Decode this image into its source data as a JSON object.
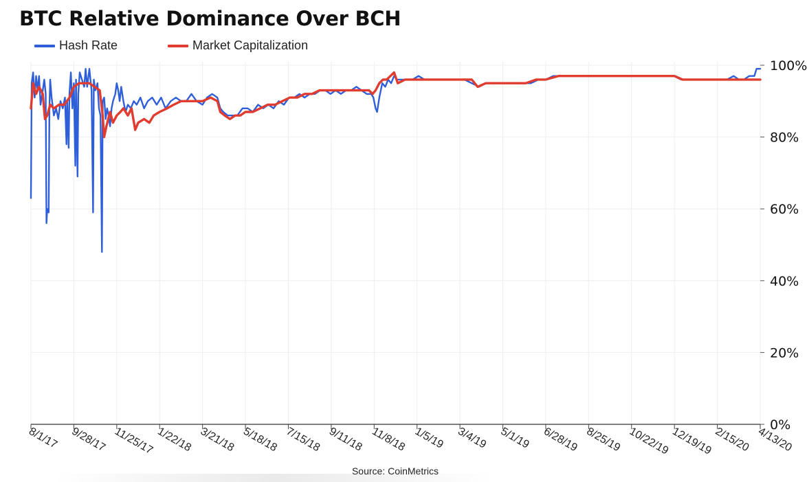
{
  "title": "BTC Relative Dominance Over BCH",
  "source": "Source: CoinMetrics",
  "chart_data": {
    "type": "line",
    "title": "BTC Relative Dominance Over BCH",
    "xlabel": "",
    "ylabel": "",
    "x_ticks": [
      "8/1/17",
      "9/28/17",
      "11/25/17",
      "1/22/18",
      "3/21/18",
      "5/18/18",
      "7/15/18",
      "9/11/18",
      "11/8/18",
      "1/5/19",
      "3/4/19",
      "5/1/19",
      "6/28/19",
      "8/25/19",
      "10/22/19",
      "12/19/19",
      "2/15/20",
      "4/13/20"
    ],
    "y_ticks": [
      "0%",
      "20%",
      "40%",
      "60%",
      "80%",
      "100%"
    ],
    "ylim": [
      0,
      100
    ],
    "x_start": "2017-08-01",
    "x_end": "2020-04-13",
    "grid": true,
    "legend_position": "top-left",
    "series": [
      {
        "name": "Hash Rate",
        "color": "#2f5fd8",
        "points": [
          [
            "2017-08-01",
            63
          ],
          [
            "2017-08-02",
            95
          ],
          [
            "2017-08-04",
            98
          ],
          [
            "2017-08-06",
            91
          ],
          [
            "2017-08-08",
            97
          ],
          [
            "2017-08-10",
            93
          ],
          [
            "2017-08-12",
            97
          ],
          [
            "2017-08-14",
            89
          ],
          [
            "2017-08-17",
            93
          ],
          [
            "2017-08-19",
            96
          ],
          [
            "2017-08-21",
            92
          ],
          [
            "2017-08-22",
            56
          ],
          [
            "2017-08-23",
            60
          ],
          [
            "2017-08-25",
            59
          ],
          [
            "2017-08-26",
            88
          ],
          [
            "2017-08-27",
            96
          ],
          [
            "2017-08-29",
            91
          ],
          [
            "2017-09-01",
            86
          ],
          [
            "2017-09-04",
            88
          ],
          [
            "2017-09-07",
            85
          ],
          [
            "2017-09-10",
            90
          ],
          [
            "2017-09-13",
            88
          ],
          [
            "2017-09-16",
            91
          ],
          [
            "2017-09-18",
            78
          ],
          [
            "2017-09-19",
            90
          ],
          [
            "2017-09-21",
            77
          ],
          [
            "2017-09-22",
            92
          ],
          [
            "2017-09-24",
            98
          ],
          [
            "2017-09-26",
            88
          ],
          [
            "2017-09-28",
            95
          ],
          [
            "2017-09-30",
            72
          ],
          [
            "2017-10-01",
            96
          ],
          [
            "2017-10-03",
            69
          ],
          [
            "2017-10-04",
            92
          ],
          [
            "2017-10-06",
            98
          ],
          [
            "2017-10-09",
            96
          ],
          [
            "2017-10-12",
            94
          ],
          [
            "2017-10-14",
            99
          ],
          [
            "2017-10-16",
            94
          ],
          [
            "2017-10-19",
            99
          ],
          [
            "2017-10-22",
            93
          ],
          [
            "2017-10-24",
            59
          ],
          [
            "2017-10-25",
            96
          ],
          [
            "2017-10-27",
            93
          ],
          [
            "2017-10-30",
            95
          ],
          [
            "2017-11-01",
            88
          ],
          [
            "2017-11-03",
            86
          ],
          [
            "2017-11-05",
            48
          ],
          [
            "2017-11-06",
            90
          ],
          [
            "2017-11-08",
            91
          ],
          [
            "2017-11-10",
            85
          ],
          [
            "2017-11-12",
            88
          ],
          [
            "2017-11-14",
            86
          ],
          [
            "2017-11-16",
            83
          ],
          [
            "2017-11-18",
            88
          ],
          [
            "2017-11-20",
            90
          ],
          [
            "2017-11-23",
            92
          ],
          [
            "2017-11-25",
            95
          ],
          [
            "2017-11-27",
            93
          ],
          [
            "2017-11-29",
            90
          ],
          [
            "2017-12-01",
            94
          ],
          [
            "2017-12-04",
            90
          ],
          [
            "2017-12-07",
            87
          ],
          [
            "2017-12-10",
            89
          ],
          [
            "2017-12-14",
            88
          ],
          [
            "2017-12-18",
            90
          ],
          [
            "2017-12-22",
            89
          ],
          [
            "2017-12-27",
            91
          ],
          [
            "2018-01-01",
            88
          ],
          [
            "2018-01-06",
            90
          ],
          [
            "2018-01-12",
            91
          ],
          [
            "2018-01-18",
            89
          ],
          [
            "2018-01-24",
            91
          ],
          [
            "2018-01-30",
            88
          ],
          [
            "2018-02-06",
            90
          ],
          [
            "2018-02-13",
            91
          ],
          [
            "2018-02-20",
            90
          ],
          [
            "2018-02-27",
            90
          ],
          [
            "2018-03-06",
            92
          ],
          [
            "2018-03-13",
            90
          ],
          [
            "2018-03-21",
            89
          ],
          [
            "2018-03-27",
            91
          ],
          [
            "2018-04-03",
            92
          ],
          [
            "2018-04-10",
            91
          ],
          [
            "2018-04-14",
            88
          ],
          [
            "2018-04-18",
            87
          ],
          [
            "2018-04-24",
            86
          ],
          [
            "2018-04-30",
            86
          ],
          [
            "2018-05-07",
            86
          ],
          [
            "2018-05-14",
            88
          ],
          [
            "2018-05-21",
            88
          ],
          [
            "2018-05-28",
            87
          ],
          [
            "2018-06-04",
            89
          ],
          [
            "2018-06-11",
            88
          ],
          [
            "2018-06-18",
            89
          ],
          [
            "2018-06-25",
            88
          ],
          [
            "2018-07-02",
            90
          ],
          [
            "2018-07-09",
            89
          ],
          [
            "2018-07-16",
            91
          ],
          [
            "2018-07-23",
            91
          ],
          [
            "2018-07-30",
            92
          ],
          [
            "2018-08-06",
            91
          ],
          [
            "2018-08-13",
            92
          ],
          [
            "2018-08-20",
            92
          ],
          [
            "2018-08-27",
            93
          ],
          [
            "2018-09-03",
            93
          ],
          [
            "2018-09-10",
            92
          ],
          [
            "2018-09-17",
            93
          ],
          [
            "2018-09-24",
            92
          ],
          [
            "2018-10-01",
            93
          ],
          [
            "2018-10-08",
            93
          ],
          [
            "2018-10-15",
            94
          ],
          [
            "2018-10-22",
            93
          ],
          [
            "2018-10-29",
            92
          ],
          [
            "2018-11-04",
            92
          ],
          [
            "2018-11-07",
            91
          ],
          [
            "2018-11-10",
            88
          ],
          [
            "2018-11-12",
            87
          ],
          [
            "2018-11-15",
            91
          ],
          [
            "2018-11-19",
            95
          ],
          [
            "2018-11-23",
            94
          ],
          [
            "2018-11-27",
            96
          ],
          [
            "2018-12-01",
            95
          ],
          [
            "2018-12-05",
            97
          ],
          [
            "2018-12-09",
            96
          ],
          [
            "2018-12-15",
            96
          ],
          [
            "2018-12-22",
            96
          ],
          [
            "2018-12-30",
            96
          ],
          [
            "2019-01-07",
            97
          ],
          [
            "2019-01-15",
            96
          ],
          [
            "2019-01-23",
            96
          ],
          [
            "2019-02-01",
            96
          ],
          [
            "2019-02-10",
            96
          ],
          [
            "2019-02-20",
            96
          ],
          [
            "2019-03-01",
            96
          ],
          [
            "2019-03-10",
            96
          ],
          [
            "2019-03-20",
            95
          ],
          [
            "2019-03-30",
            94
          ],
          [
            "2019-04-08",
            95
          ],
          [
            "2019-04-18",
            95
          ],
          [
            "2019-04-28",
            95
          ],
          [
            "2019-05-08",
            95
          ],
          [
            "2019-05-18",
            95
          ],
          [
            "2019-05-28",
            95
          ],
          [
            "2019-06-08",
            95
          ],
          [
            "2019-06-18",
            96
          ],
          [
            "2019-06-28",
            96
          ],
          [
            "2019-07-08",
            97
          ],
          [
            "2019-07-18",
            97
          ],
          [
            "2019-07-28",
            97
          ],
          [
            "2019-08-08",
            97
          ],
          [
            "2019-08-18",
            97
          ],
          [
            "2019-08-28",
            97
          ],
          [
            "2019-09-08",
            97
          ],
          [
            "2019-09-18",
            97
          ],
          [
            "2019-09-28",
            97
          ],
          [
            "2019-10-08",
            97
          ],
          [
            "2019-10-18",
            97
          ],
          [
            "2019-10-28",
            97
          ],
          [
            "2019-11-08",
            97
          ],
          [
            "2019-11-18",
            97
          ],
          [
            "2019-11-28",
            97
          ],
          [
            "2019-12-08",
            97
          ],
          [
            "2019-12-18",
            97
          ],
          [
            "2019-12-28",
            96
          ],
          [
            "2020-01-08",
            96
          ],
          [
            "2020-01-18",
            96
          ],
          [
            "2020-01-28",
            96
          ],
          [
            "2020-02-08",
            96
          ],
          [
            "2020-02-18",
            96
          ],
          [
            "2020-02-28",
            96
          ],
          [
            "2020-03-08",
            97
          ],
          [
            "2020-03-15",
            96
          ],
          [
            "2020-03-22",
            96
          ],
          [
            "2020-03-29",
            97
          ],
          [
            "2020-04-05",
            97
          ],
          [
            "2020-04-08",
            99
          ],
          [
            "2020-04-13",
            99
          ]
        ]
      },
      {
        "name": "Market Capitalization",
        "color": "#e03c2f",
        "points": [
          [
            "2017-08-01",
            88
          ],
          [
            "2017-08-04",
            95
          ],
          [
            "2017-08-08",
            92
          ],
          [
            "2017-08-12",
            94
          ],
          [
            "2017-08-17",
            92
          ],
          [
            "2017-08-20",
            85
          ],
          [
            "2017-08-23",
            86
          ],
          [
            "2017-08-27",
            89
          ],
          [
            "2017-09-01",
            88
          ],
          [
            "2017-09-08",
            89
          ],
          [
            "2017-09-15",
            89
          ],
          [
            "2017-09-22",
            91
          ],
          [
            "2017-09-28",
            94
          ],
          [
            "2017-10-05",
            95
          ],
          [
            "2017-10-12",
            95
          ],
          [
            "2017-10-19",
            95
          ],
          [
            "2017-10-26",
            94
          ],
          [
            "2017-11-02",
            93
          ],
          [
            "2017-11-06",
            86
          ],
          [
            "2017-11-08",
            80
          ],
          [
            "2017-11-11",
            83
          ],
          [
            "2017-11-16",
            87
          ],
          [
            "2017-11-20",
            84
          ],
          [
            "2017-11-25",
            86
          ],
          [
            "2017-11-30",
            87
          ],
          [
            "2017-12-04",
            88
          ],
          [
            "2017-12-10",
            86
          ],
          [
            "2017-12-15",
            88
          ],
          [
            "2017-12-20",
            82
          ],
          [
            "2017-12-24",
            84
          ],
          [
            "2018-01-01",
            85
          ],
          [
            "2018-01-08",
            84
          ],
          [
            "2018-01-14",
            86
          ],
          [
            "2018-01-22",
            87
          ],
          [
            "2018-02-01",
            88
          ],
          [
            "2018-02-10",
            89
          ],
          [
            "2018-02-20",
            90
          ],
          [
            "2018-03-01",
            90
          ],
          [
            "2018-03-10",
            90
          ],
          [
            "2018-03-21",
            90
          ],
          [
            "2018-04-01",
            91
          ],
          [
            "2018-04-10",
            90
          ],
          [
            "2018-04-14",
            87
          ],
          [
            "2018-04-20",
            86
          ],
          [
            "2018-04-27",
            85
          ],
          [
            "2018-05-04",
            86
          ],
          [
            "2018-05-11",
            86
          ],
          [
            "2018-05-18",
            87
          ],
          [
            "2018-05-28",
            87
          ],
          [
            "2018-06-07",
            88
          ],
          [
            "2018-06-17",
            89
          ],
          [
            "2018-06-27",
            89
          ],
          [
            "2018-07-07",
            90
          ],
          [
            "2018-07-17",
            91
          ],
          [
            "2018-07-27",
            91
          ],
          [
            "2018-08-06",
            92
          ],
          [
            "2018-08-16",
            92
          ],
          [
            "2018-08-26",
            93
          ],
          [
            "2018-09-05",
            93
          ],
          [
            "2018-09-15",
            93
          ],
          [
            "2018-09-25",
            93
          ],
          [
            "2018-10-05",
            93
          ],
          [
            "2018-10-15",
            93
          ],
          [
            "2018-10-25",
            93
          ],
          [
            "2018-11-01",
            93
          ],
          [
            "2018-11-06",
            92
          ],
          [
            "2018-11-10",
            93
          ],
          [
            "2018-11-15",
            95
          ],
          [
            "2018-11-20",
            96
          ],
          [
            "2018-11-25",
            96
          ],
          [
            "2018-11-30",
            97
          ],
          [
            "2018-12-05",
            98
          ],
          [
            "2018-12-10",
            95
          ],
          [
            "2018-12-20",
            96
          ],
          [
            "2019-01-05",
            96
          ],
          [
            "2019-01-20",
            96
          ],
          [
            "2019-02-05",
            96
          ],
          [
            "2019-02-20",
            96
          ],
          [
            "2019-03-04",
            96
          ],
          [
            "2019-03-20",
            96
          ],
          [
            "2019-03-28",
            94
          ],
          [
            "2019-04-08",
            95
          ],
          [
            "2019-04-20",
            95
          ],
          [
            "2019-05-01",
            95
          ],
          [
            "2019-05-15",
            95
          ],
          [
            "2019-06-01",
            95
          ],
          [
            "2019-06-15",
            96
          ],
          [
            "2019-06-28",
            96
          ],
          [
            "2019-07-15",
            97
          ],
          [
            "2019-08-01",
            97
          ],
          [
            "2019-08-25",
            97
          ],
          [
            "2019-09-15",
            97
          ],
          [
            "2019-10-01",
            97
          ],
          [
            "2019-10-22",
            97
          ],
          [
            "2019-11-10",
            97
          ],
          [
            "2019-11-30",
            97
          ],
          [
            "2019-12-19",
            97
          ],
          [
            "2019-12-30",
            96
          ],
          [
            "2020-01-15",
            96
          ],
          [
            "2020-02-01",
            96
          ],
          [
            "2020-02-15",
            96
          ],
          [
            "2020-03-01",
            96
          ],
          [
            "2020-03-15",
            96
          ],
          [
            "2020-04-01",
            96
          ],
          [
            "2020-04-13",
            96
          ]
        ]
      }
    ]
  }
}
